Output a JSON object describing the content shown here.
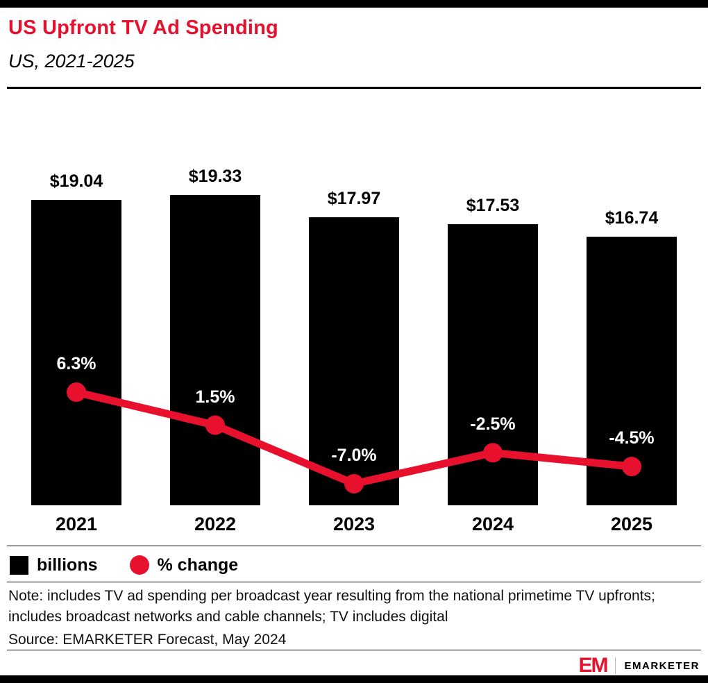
{
  "header": {
    "title": "US Upfront TV Ad Spending",
    "subtitle": "US, 2021-2025"
  },
  "legend": [
    {
      "label": "billions",
      "swatch": "black-square"
    },
    {
      "label": "% change",
      "swatch": "red-circle"
    }
  ],
  "note": "Note: includes TV ad spending per broadcast year resulting from the national primetime TV upfronts; includes broadcast networks and cable channels; TV includes digital",
  "source": "Source: EMARKETER Forecast, May 2024",
  "footer": {
    "logo": "EM",
    "brand": "EMARKETER"
  },
  "colors": {
    "accent_red": "#e8112d",
    "bar_black": "#000000",
    "background": "#ffffff"
  },
  "chart_data": {
    "type": "bar",
    "title": "US Upfront TV Ad Spending",
    "subtitle": "US, 2021-2025",
    "categories": [
      "2021",
      "2022",
      "2023",
      "2024",
      "2025"
    ],
    "series": [
      {
        "name": "billions",
        "type": "bar",
        "values": [
          19.04,
          19.33,
          17.97,
          17.53,
          16.74
        ],
        "labels": [
          "$19.04",
          "$19.33",
          "$17.97",
          "$17.53",
          "$16.74"
        ],
        "color": "#000000"
      },
      {
        "name": "% change",
        "type": "line",
        "values": [
          6.3,
          1.5,
          -7.0,
          -2.5,
          -4.5
        ],
        "labels": [
          "6.3%",
          "1.5%",
          "-7.0%",
          "-2.5%",
          "-4.5%"
        ],
        "color": "#e8112d"
      }
    ],
    "xlabel": "",
    "ylabel": "",
    "ylim_bar": [
      0,
      25.8
    ],
    "ylim_line": [
      -16.0,
      11.0
    ],
    "grid": false,
    "legend_position": "bottom"
  }
}
